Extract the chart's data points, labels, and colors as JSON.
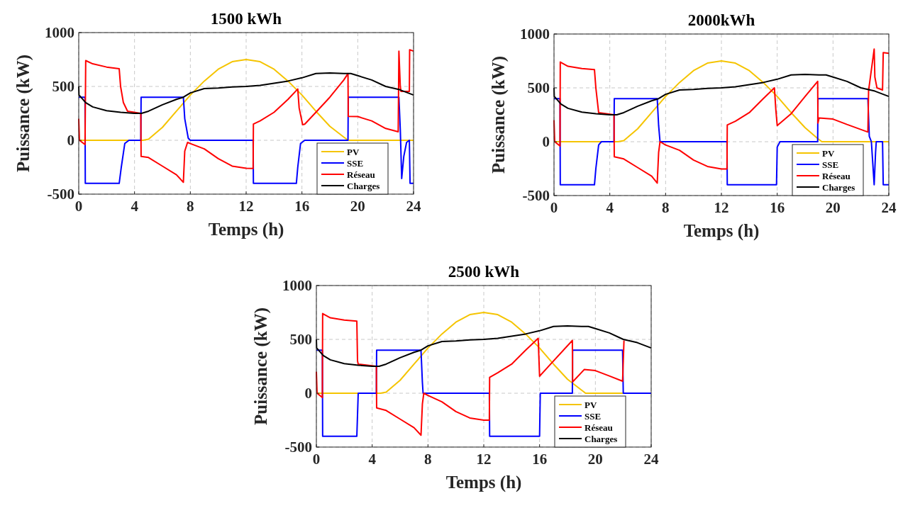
{
  "chart_data": [
    {
      "type": "line",
      "title": "1500 kWh",
      "xlabel": "Temps (h)",
      "ylabel": "Puissance (kW)",
      "xlim": [
        0,
        24
      ],
      "ylim": [
        -500,
        1000
      ],
      "xticks": [
        0,
        4,
        8,
        12,
        16,
        20,
        24
      ],
      "yticks": [
        -500,
        0,
        500,
        1000
      ],
      "grid": true,
      "legend": "bottom right",
      "series": [
        {
          "name": "PV",
          "color": "#f5c400",
          "x": [
            0,
            4.6,
            5,
            6,
            7,
            8,
            9,
            10,
            11,
            12,
            13,
            14,
            15,
            16,
            17,
            18,
            19,
            19.3,
            24
          ],
          "values": [
            0,
            0,
            10,
            120,
            270,
            420,
            550,
            660,
            730,
            750,
            730,
            660,
            550,
            420,
            270,
            130,
            30,
            0,
            0
          ]
        },
        {
          "name": "SSE",
          "color": "#0000ff",
          "x": [
            0,
            0.45,
            0.47,
            2.9,
            3.05,
            3.3,
            3.6,
            4.45,
            4.47,
            7.5,
            7.6,
            7.85,
            8,
            12.5,
            12.52,
            15.6,
            15.7,
            15.9,
            16.2,
            19.3,
            19.32,
            22.95,
            23.05,
            23.15,
            23.3,
            23.5,
            23.7,
            23.75,
            24
          ],
          "values": [
            400,
            400,
            -400,
            -400,
            -250,
            -30,
            0,
            0,
            400,
            400,
            200,
            20,
            0,
            0,
            -400,
            -400,
            -250,
            -30,
            0,
            0,
            400,
            400,
            100,
            -355,
            -150,
            -20,
            0,
            -400,
            -400
          ]
        },
        {
          "name": "Réseau",
          "color": "#ff0000",
          "x": [
            0,
            0.05,
            0.45,
            0.5,
            1,
            2,
            2.9,
            3,
            3.2,
            3.5,
            4.45,
            4.47,
            5,
            6,
            7,
            7.5,
            7.6,
            7.8,
            8,
            9,
            10,
            11,
            12,
            12.5,
            12.52,
            13,
            14,
            15,
            15.7,
            15.8,
            16.05,
            16.2,
            17,
            18,
            19,
            19.3,
            19.32,
            20,
            21,
            22,
            22.9,
            22.95,
            23.05,
            23.1,
            23.3,
            23.7,
            23.72,
            24
          ],
          "values": [
            200,
            0,
            -40,
            740,
            710,
            680,
            665,
            500,
            350,
            270,
            250,
            -150,
            -160,
            -240,
            -320,
            -390,
            -100,
            -20,
            -30,
            -80,
            -170,
            -240,
            -260,
            -262,
            150,
            180,
            260,
            380,
            476,
            300,
            145,
            150,
            260,
            400,
            560,
            619,
            222,
            220,
            180,
            110,
            79,
            828,
            500,
            454,
            454,
            454,
            840,
            828
          ]
        },
        {
          "name": "Charges",
          "color": "#000000",
          "x": [
            0,
            0.02,
            0.5,
            1,
            2,
            3,
            4,
            4.5,
            5,
            6,
            7,
            7.5,
            8,
            9,
            10,
            11,
            12,
            13,
            14,
            15,
            16,
            17,
            18,
            19,
            19.5,
            20,
            21,
            22,
            23,
            24
          ],
          "values": [
            500,
            420,
            350,
            310,
            275,
            260,
            250,
            250,
            270,
            330,
            380,
            400,
            440,
            480,
            485,
            495,
            500,
            510,
            530,
            550,
            580,
            620,
            625,
            620,
            620,
            600,
            560,
            500,
            470,
            420
          ]
        }
      ]
    },
    {
      "type": "line",
      "title": "2000kWh",
      "xlabel": "Temps (h)",
      "ylabel": "Puissance (kW)",
      "xlim": [
        0,
        24
      ],
      "ylim": [
        -500,
        1000
      ],
      "xticks": [
        0,
        4,
        8,
        12,
        16,
        20,
        24
      ],
      "yticks": [
        -500,
        0,
        500,
        1000
      ],
      "grid": true,
      "legend": "bottom right",
      "series": [
        {
          "name": "PV",
          "color": "#f5c400",
          "x": [
            0,
            4.6,
            5,
            6,
            7,
            8,
            9,
            10,
            11,
            12,
            13,
            14,
            15,
            16,
            17,
            18,
            18.9,
            19.2,
            24
          ],
          "values": [
            0,
            0,
            10,
            120,
            270,
            420,
            550,
            660,
            730,
            750,
            730,
            660,
            550,
            420,
            270,
            130,
            30,
            0,
            0
          ]
        },
        {
          "name": "SSE",
          "color": "#0000ff",
          "x": [
            0,
            0.43,
            0.45,
            2.9,
            3.0,
            3.2,
            3.4,
            4.3,
            4.32,
            7.4,
            7.5,
            7.6,
            12.4,
            12.42,
            15.95,
            16.0,
            16.2,
            18.9,
            18.92,
            22.5,
            22.6,
            22.75,
            22.95,
            23.05,
            23.1,
            23.55,
            23.6,
            24
          ],
          "values": [
            400,
            400,
            -400,
            -400,
            -250,
            -30,
            0,
            0,
            400,
            400,
            150,
            0,
            0,
            -400,
            -400,
            -50,
            0,
            0,
            400,
            400,
            50,
            0,
            -400,
            -100,
            0,
            0,
            -400,
            -400
          ]
        },
        {
          "name": "Réseau",
          "color": "#ff0000",
          "x": [
            0,
            0.05,
            0.43,
            0.45,
            1,
            2,
            2.9,
            3.0,
            3.2,
            4.3,
            4.32,
            5,
            6,
            7,
            7.4,
            7.5,
            7.6,
            8,
            9,
            10,
            11,
            12,
            12.4,
            12.42,
            13,
            14,
            15,
            15.8,
            15.9,
            16.0,
            17,
            18,
            18.9,
            18.92,
            19.0,
            20,
            21,
            22.5,
            22.55,
            22.95,
            23.0,
            23.15,
            23.55,
            23.6,
            24
          ],
          "values": [
            200,
            0,
            -40,
            740,
            700,
            680,
            670,
            500,
            270,
            250,
            -140,
            -160,
            -240,
            -320,
            -384,
            -100,
            0,
            -30,
            -80,
            -170,
            -230,
            -253,
            -253,
            155,
            190,
            270,
            400,
            500,
            300,
            150,
            260,
            420,
            560,
            172,
            220,
            210,
            160,
            90,
            474,
            860,
            600,
            500,
            480,
            828,
            820
          ]
        },
        {
          "name": "Charges",
          "color": "#000000",
          "x": [
            0,
            0.02,
            0.5,
            1,
            2,
            3,
            4,
            4.5,
            5,
            6,
            7,
            7.5,
            8,
            9,
            10,
            11,
            12,
            13,
            14,
            15,
            16,
            17,
            18,
            19,
            19.5,
            20,
            21,
            22,
            23,
            24
          ],
          "values": [
            500,
            420,
            350,
            310,
            275,
            260,
            250,
            250,
            270,
            330,
            380,
            400,
            440,
            480,
            485,
            495,
            500,
            510,
            530,
            550,
            580,
            620,
            625,
            620,
            620,
            600,
            560,
            500,
            470,
            420
          ]
        }
      ]
    },
    {
      "type": "line",
      "title": "2500 kWh",
      "xlabel": "Temps (h)",
      "ylabel": "Puissance (kW)",
      "xlim": [
        0,
        24
      ],
      "ylim": [
        -500,
        1000
      ],
      "xticks": [
        0,
        4,
        8,
        12,
        16,
        20,
        24
      ],
      "yticks": [
        -500,
        0,
        500,
        1000
      ],
      "grid": true,
      "legend": "bottom right",
      "series": [
        {
          "name": "PV",
          "color": "#f5c400",
          "x": [
            0,
            4.6,
            5,
            6,
            7,
            8,
            9,
            10,
            11,
            12,
            13,
            14,
            15,
            16,
            17,
            18,
            19,
            19.3,
            22
          ],
          "values": [
            0,
            0,
            10,
            120,
            270,
            420,
            550,
            660,
            730,
            750,
            730,
            660,
            550,
            420,
            270,
            130,
            30,
            0,
            0
          ]
        },
        {
          "name": "SSE",
          "color": "#0000ff",
          "x": [
            0,
            0.43,
            0.45,
            2.9,
            2.95,
            3.0,
            4.3,
            4.32,
            7.5,
            7.6,
            7.65,
            12.4,
            12.42,
            16.0,
            16.05,
            18.35,
            18.37,
            21.95,
            22.0,
            24
          ],
          "values": [
            400,
            400,
            -400,
            -400,
            -200,
            0,
            0,
            400,
            400,
            100,
            0,
            0,
            -400,
            -400,
            0,
            0,
            400,
            400,
            0,
            0
          ]
        },
        {
          "name": "Réseau",
          "color": "#ff0000",
          "x": [
            0,
            0.05,
            0.43,
            0.45,
            1,
            2,
            2.9,
            2.95,
            3.0,
            4.3,
            4.32,
            5,
            6,
            7,
            7.5,
            7.6,
            7.7,
            8,
            9,
            10,
            11,
            12,
            12.4,
            12.42,
            13,
            14,
            15,
            15.9,
            16.0,
            17,
            18.35,
            18.37,
            19.2,
            20,
            21,
            21.95,
            22.05
          ],
          "values": [
            200,
            0,
            -40,
            740,
            700,
            680,
            670,
            300,
            270,
            250,
            -137,
            -160,
            -240,
            -320,
            -390,
            -100,
            0,
            -20,
            -80,
            -170,
            -230,
            -250,
            -250,
            148,
            190,
            270,
            400,
            510,
            158,
            300,
            490,
            105,
            220,
            210,
            160,
            112,
            490
          ]
        },
        {
          "name": "Charges",
          "color": "#000000",
          "x": [
            0,
            0.02,
            0.5,
            1,
            2,
            3,
            4,
            4.5,
            5,
            6,
            7,
            7.5,
            8,
            9,
            10,
            11,
            12,
            13,
            14,
            15,
            16,
            17,
            18,
            19,
            19.5,
            20,
            21,
            22,
            23,
            24
          ],
          "values": [
            500,
            420,
            350,
            310,
            275,
            260,
            250,
            250,
            270,
            330,
            380,
            400,
            440,
            480,
            485,
            495,
            500,
            510,
            530,
            550,
            580,
            620,
            625,
            620,
            620,
            600,
            560,
            500,
            470,
            420
          ]
        }
      ]
    }
  ]
}
